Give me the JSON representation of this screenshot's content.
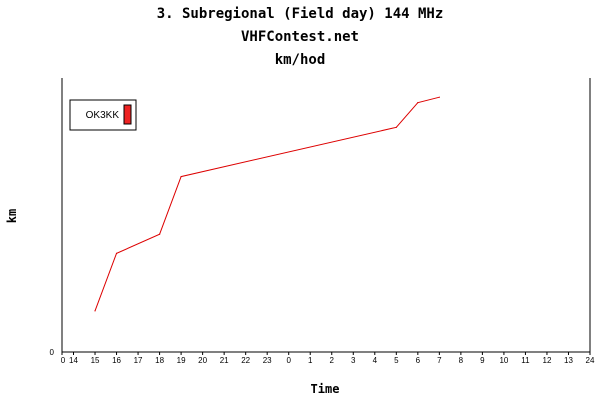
{
  "chart_data": {
    "type": "line",
    "title": "3. Subregional (Field day) 144 MHz",
    "subtitle": "VHFContest.net",
    "unit_title": "km/hod",
    "xlabel": "Time",
    "ylabel": "km",
    "y_tick_labels": [
      "0"
    ],
    "x_tick_labels": [
      "0",
      "14",
      "15",
      "16",
      "17",
      "18",
      "19",
      "20",
      "21",
      "22",
      "23",
      "0",
      "1",
      "2",
      "3",
      "4",
      "5",
      "6",
      "7",
      "8",
      "9",
      "10",
      "11",
      "12",
      "13",
      "24"
    ],
    "x_range": [
      14,
      38
    ],
    "grid": false,
    "legend_placement": "top-left",
    "series": [
      {
        "name": "OK3KK",
        "color": "#dd0000",
        "legend_swatch_color": "#ee2222",
        "x": [
          15,
          16,
          18,
          19,
          29,
          30,
          31
        ],
        "y": [
          0.15,
          0.36,
          0.43,
          0.64,
          0.82,
          0.91,
          0.93
        ]
      }
    ]
  },
  "colors": {
    "axis": "#000000",
    "background": "#ffffff"
  }
}
